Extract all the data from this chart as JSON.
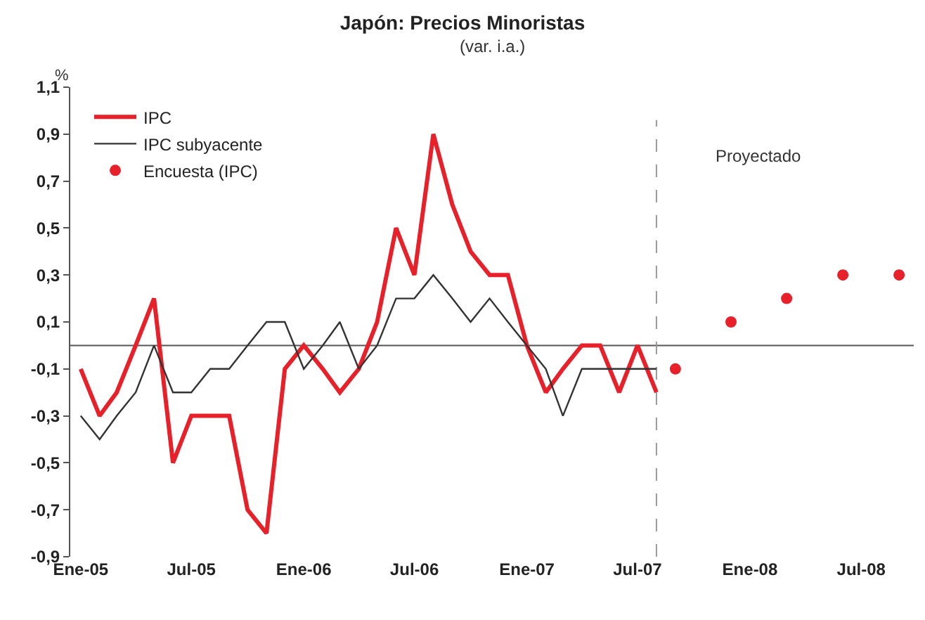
{
  "chart_data": {
    "type": "line",
    "title": "Japón: Precios Minoristas",
    "subtitle": "(var. i.a.)",
    "ylabel": "%",
    "x": [
      "2005-01",
      "2005-02",
      "2005-03",
      "2005-04",
      "2005-05",
      "2005-06",
      "2005-07",
      "2005-08",
      "2005-09",
      "2005-10",
      "2005-11",
      "2005-12",
      "2006-01",
      "2006-02",
      "2006-03",
      "2006-04",
      "2006-05",
      "2006-06",
      "2006-07",
      "2006-08",
      "2006-09",
      "2006-10",
      "2006-11",
      "2006-12",
      "2007-01",
      "2007-02",
      "2007-03",
      "2007-04",
      "2007-05",
      "2007-06",
      "2007-07",
      "2007-08"
    ],
    "series": [
      {
        "name": "IPC",
        "color": "#e8202a",
        "values": [
          -0.1,
          -0.3,
          -0.2,
          0.0,
          0.2,
          -0.5,
          -0.3,
          -0.3,
          -0.3,
          -0.7,
          -0.8,
          -0.1,
          0.0,
          -0.1,
          -0.2,
          -0.1,
          0.1,
          0.5,
          0.3,
          0.9,
          0.6,
          0.4,
          0.3,
          0.3,
          0.0,
          -0.2,
          -0.1,
          0.0,
          0.0,
          -0.2,
          0.0,
          -0.2
        ]
      },
      {
        "name": "IPC subyacente",
        "color": "#333333",
        "values": [
          -0.3,
          -0.4,
          -0.3,
          -0.2,
          0.0,
          -0.2,
          -0.2,
          -0.1,
          -0.1,
          0.0,
          0.1,
          0.1,
          -0.1,
          0.0,
          0.1,
          -0.1,
          0.0,
          0.2,
          0.2,
          0.3,
          0.2,
          0.1,
          0.2,
          0.1,
          0.0,
          -0.1,
          -0.3,
          -0.1,
          -0.1,
          -0.1,
          -0.1,
          -0.1
        ]
      },
      {
        "name": "Encuesta (IPC)",
        "type": "scatter",
        "color": "#e8202a",
        "x": [
          "2007-09",
          "2007-12",
          "2008-03",
          "2008-06",
          "2008-09"
        ],
        "values": [
          -0.1,
          0.1,
          0.2,
          0.3,
          0.3
        ]
      }
    ],
    "xlim": [
      "2004-12-15",
      "2008-09-25"
    ],
    "xticks": [
      {
        "value": "2005-01",
        "label": "Ene-05"
      },
      {
        "value": "2005-07",
        "label": "Jul-05"
      },
      {
        "value": "2006-01",
        "label": "Ene-06"
      },
      {
        "value": "2006-07",
        "label": "Jul-06"
      },
      {
        "value": "2007-01",
        "label": "Ene-07"
      },
      {
        "value": "2007-07",
        "label": "Jul-07"
      },
      {
        "value": "2008-01",
        "label": "Ene-08"
      },
      {
        "value": "2008-07",
        "label": "Jul-08"
      }
    ],
    "ylim": [
      -0.9,
      1.1
    ],
    "yticks": [
      {
        "value": -0.9,
        "label": "-0,9"
      },
      {
        "value": -0.7,
        "label": "-0,7"
      },
      {
        "value": -0.5,
        "label": "-0,5"
      },
      {
        "value": -0.3,
        "label": "-0,3"
      },
      {
        "value": -0.1,
        "label": "-0,1"
      },
      {
        "value": 0.1,
        "label": "0,1"
      },
      {
        "value": 0.3,
        "label": "0,3"
      },
      {
        "value": 0.5,
        "label": "0,5"
      },
      {
        "value": 0.7,
        "label": "0,7"
      },
      {
        "value": 0.9,
        "label": "0,9"
      },
      {
        "value": 1.1,
        "label": "1,1"
      }
    ],
    "ref_lines": [
      {
        "axis": "y",
        "value": 0,
        "color": "#555555",
        "line_style": "solid"
      },
      {
        "axis": "x",
        "value": "2007-08",
        "color": "#999999",
        "line_style": "dashed"
      }
    ],
    "annotations": [
      "Proyectado"
    ],
    "grid": false,
    "legend": "top left"
  }
}
